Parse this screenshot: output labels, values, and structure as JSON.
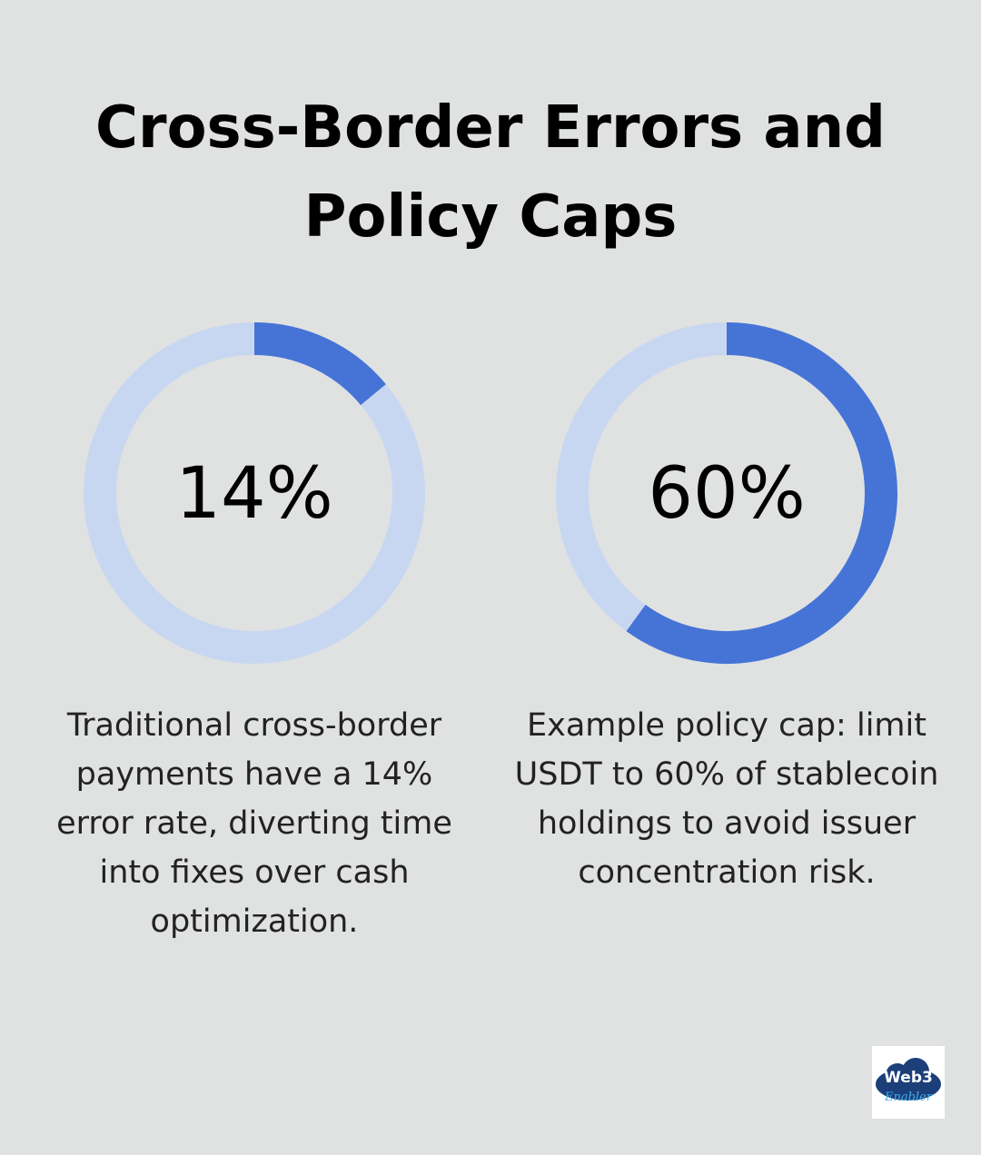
{
  "title": "Cross-Border Errors and Policy Caps",
  "chart_data": [
    {
      "type": "donut",
      "value": 14,
      "value_label": "14%",
      "color": "#4674d6",
      "track_color": "#c8d7f1",
      "description": "Traditional cross-border payments have a 14% error rate, diverting time into fixes over cash optimization."
    },
    {
      "type": "donut",
      "value": 60,
      "value_label": "60%",
      "color": "#4674d6",
      "track_color": "#c8d7f1",
      "description": "Example policy cap: limit USDT to 60% of stablecoin holdings to avoid issuer concentration risk."
    }
  ],
  "logo": {
    "line1": "Web3",
    "line2": "Enabler"
  }
}
